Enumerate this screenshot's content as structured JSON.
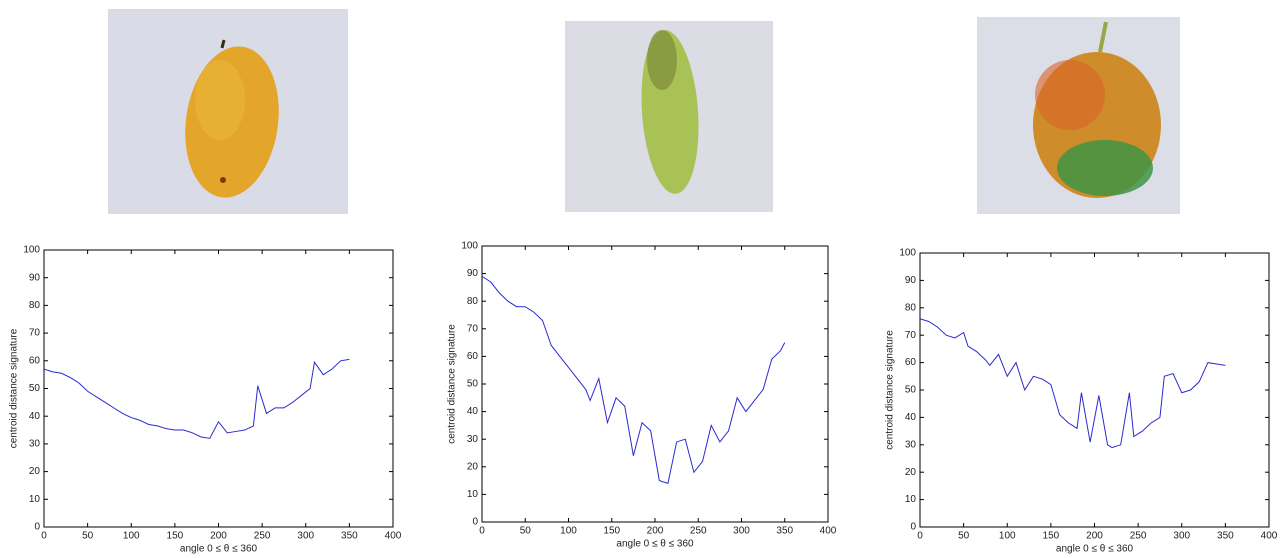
{
  "chart_data": [
    {
      "type": "line",
      "xlabel": "angle 0 ≤ θ ≤ 360",
      "ylabel": "centroid distance signature",
      "x": [
        0,
        10,
        20,
        30,
        40,
        50,
        60,
        70,
        80,
        90,
        100,
        110,
        120,
        130,
        140,
        150,
        160,
        170,
        180,
        190,
        200,
        210,
        220,
        230,
        240,
        245,
        255,
        265,
        275,
        285,
        295,
        305,
        310,
        320,
        330,
        340,
        350
      ],
      "values": [
        57,
        56,
        55.5,
        54,
        52,
        49,
        47,
        45,
        43,
        41,
        39.5,
        38.5,
        37,
        36.5,
        35.5,
        35,
        35,
        34,
        32.5,
        32,
        38,
        34,
        34.5,
        35,
        36.5,
        51,
        41,
        43,
        43,
        45,
        47.5,
        50,
        59.5,
        55,
        57,
        60,
        60.5
      ],
      "color": "#2a2ad0",
      "xlim": [
        0,
        400
      ],
      "ylim": [
        0,
        100
      ],
      "xticks": [
        0,
        50,
        100,
        150,
        200,
        250,
        300,
        350,
        400
      ],
      "yticks": [
        0,
        10,
        20,
        30,
        40,
        50,
        60,
        70,
        80,
        90,
        100
      ]
    },
    {
      "type": "line",
      "xlabel": "angle 0 ≤ θ ≤ 360",
      "ylabel": "centroid distance signature",
      "x": [
        0,
        10,
        20,
        30,
        40,
        50,
        60,
        70,
        80,
        90,
        100,
        110,
        120,
        125,
        135,
        145,
        155,
        165,
        175,
        185,
        195,
        205,
        215,
        225,
        235,
        245,
        255,
        265,
        275,
        285,
        295,
        305,
        315,
        325,
        335,
        345,
        350
      ],
      "values": [
        89,
        87,
        83,
        80,
        78,
        78,
        76,
        73,
        64,
        60,
        56,
        52,
        48,
        44,
        52,
        36,
        45,
        42,
        24,
        36,
        33,
        15,
        14,
        29,
        30,
        18,
        22,
        35,
        29,
        33,
        45,
        40,
        44,
        48,
        59,
        62,
        65
      ],
      "color": "#2a2ad0",
      "xlim": [
        0,
        400
      ],
      "ylim": [
        0,
        100
      ],
      "xticks": [
        0,
        50,
        100,
        150,
        200,
        250,
        300,
        350,
        400
      ],
      "yticks": [
        0,
        10,
        20,
        30,
        40,
        50,
        60,
        70,
        80,
        90,
        100
      ]
    },
    {
      "type": "line",
      "xlabel": "angle 0 ≤ θ ≤ 360",
      "ylabel": "centroid distance signature",
      "x": [
        0,
        10,
        20,
        30,
        40,
        50,
        55,
        65,
        75,
        80,
        90,
        100,
        110,
        120,
        130,
        140,
        150,
        160,
        170,
        180,
        185,
        195,
        205,
        215,
        220,
        230,
        240,
        245,
        255,
        265,
        275,
        280,
        290,
        300,
        310,
        320,
        330,
        340,
        350
      ],
      "values": [
        76,
        75,
        73,
        70,
        69,
        71,
        66,
        64,
        61,
        59,
        63,
        55,
        60,
        50,
        55,
        54,
        52,
        41,
        38,
        36,
        49,
        31,
        48,
        30,
        29,
        30,
        49,
        33,
        35,
        38,
        40,
        55,
        56,
        49,
        50,
        53,
        60,
        59.5,
        59
      ],
      "color": "#2a2ad0",
      "xlim": [
        0,
        400
      ],
      "ylim": [
        0,
        100
      ],
      "xticks": [
        0,
        50,
        100,
        150,
        200,
        250,
        300,
        350,
        400
      ],
      "yticks": [
        0,
        10,
        20,
        30,
        40,
        50,
        60,
        70,
        80,
        90,
        100
      ]
    }
  ]
}
